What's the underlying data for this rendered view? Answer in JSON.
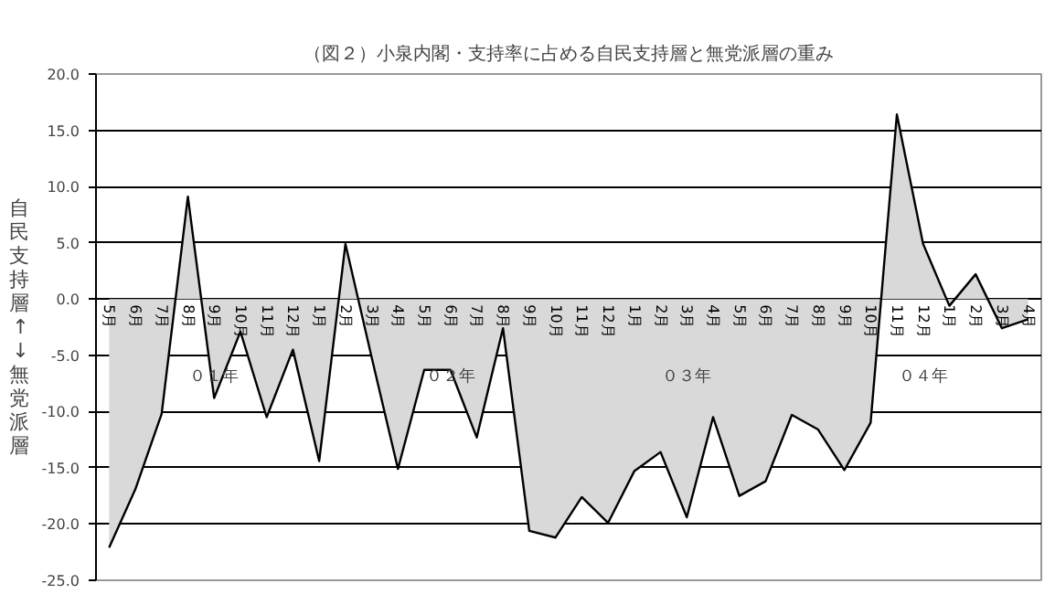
{
  "chart_data": {
    "type": "area",
    "title": "（図２）小泉内閣・支持率に占める自民支持層と無党派層の重み",
    "ylabel": "自民支持層↑↓無党派層",
    "categories": [
      "5月",
      "6月",
      "7月",
      "8月",
      "9月",
      "10月",
      "11月",
      "12月",
      "1月",
      "2月",
      "3月",
      "4月",
      "5月",
      "6月",
      "7月",
      "8月",
      "9月",
      "10月",
      "11月",
      "12月",
      "1月",
      "2月",
      "3月",
      "4月",
      "5月",
      "6月",
      "7月",
      "8月",
      "9月",
      "10月",
      "11月",
      "12月",
      "1月",
      "2月",
      "3月",
      "4月"
    ],
    "series": [
      {
        "color": "#d9d9d9",
        "values": [
          -22.1,
          -16.9,
          -10.2,
          9.1,
          -8.8,
          -2.9,
          -10.5,
          -4.5,
          -14.4,
          4.9,
          -5.2,
          -15.1,
          -6.3,
          -6.3,
          -12.3,
          -2.6,
          -20.6,
          -21.2,
          -17.6,
          -19.9,
          -15.3,
          -13.6,
          -19.4,
          -10.5,
          -17.5,
          -16.2,
          -10.3,
          -11.6,
          -15.2,
          -11.0,
          16.4,
          4.9,
          -0.6,
          2.2,
          -2.6,
          -1.8
        ]
      }
    ],
    "ylim": [
      -25,
      20
    ],
    "yticks": [
      {
        "value": -25,
        "label": "-25.0"
      },
      {
        "value": -20,
        "label": "-20.0"
      },
      {
        "value": -15,
        "label": "-15.0"
      },
      {
        "value": -10,
        "label": "-10.0"
      },
      {
        "value": -5,
        "label": "-5.0"
      },
      {
        "value": 0,
        "label": "0.0"
      },
      {
        "value": 5,
        "label": "5.0"
      },
      {
        "value": 10,
        "label": "10.0"
      },
      {
        "value": 15,
        "label": "15.0"
      },
      {
        "value": 20,
        "label": "20.0"
      }
    ],
    "grid": "y",
    "annotations": [
      "０１年",
      "０２年",
      "０３年",
      "０４年"
    ]
  }
}
